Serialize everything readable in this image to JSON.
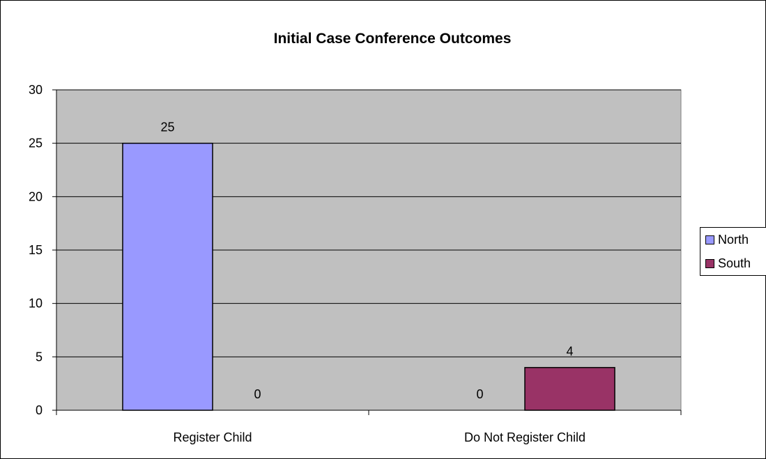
{
  "chart_data": {
    "type": "bar",
    "title": "Initial Case Conference Outcomes",
    "categories": [
      "Register Child",
      "Do Not Register Child"
    ],
    "series": [
      {
        "name": "North",
        "color": "#9999ff",
        "values": [
          25,
          0
        ]
      },
      {
        "name": "South",
        "color": "#993366",
        "values": [
          0,
          4
        ]
      }
    ],
    "data_labels": [
      {
        "category": "Register Child",
        "series": "North",
        "label": "25"
      },
      {
        "category": "Register Child",
        "series": "South",
        "label": "0"
      },
      {
        "category": "Do Not Register Child",
        "series": "North",
        "label": "0"
      },
      {
        "category": "Do Not Register Child",
        "series": "South",
        "label": "4"
      }
    ],
    "y_ticks": [
      "0",
      "5",
      "10",
      "15",
      "20",
      "25",
      "30"
    ],
    "ylim": [
      0,
      30
    ],
    "grid": true,
    "plot_background": "#c0c0c0",
    "legend_position": "right"
  }
}
